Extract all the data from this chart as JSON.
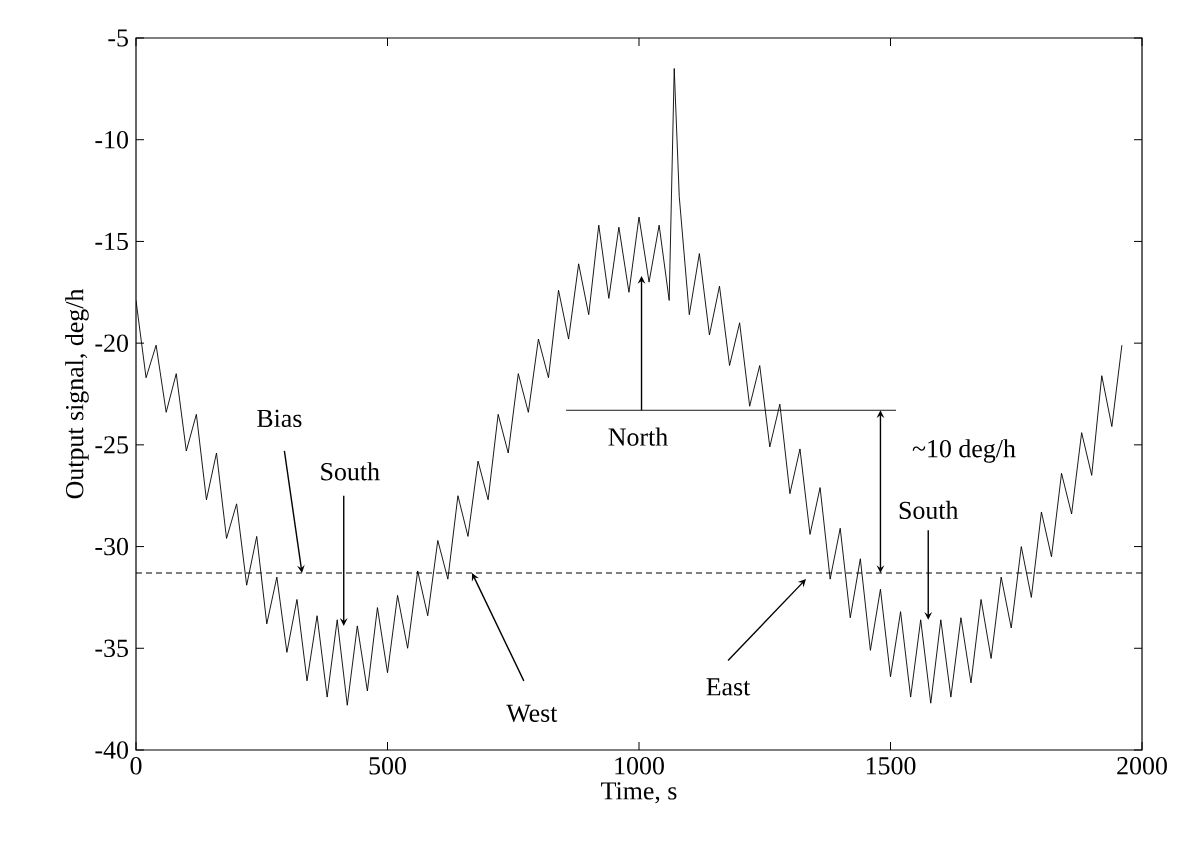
{
  "chart_data": {
    "type": "line",
    "xlabel": "Time, s",
    "ylabel": "Output signal, deg/h",
    "xlim": [
      0,
      2000
    ],
    "ylim": [
      -40,
      -5
    ],
    "xticks": [
      0,
      500,
      1000,
      1500,
      2000
    ],
    "yticks": [
      -40,
      -35,
      -30,
      -25,
      -20,
      -15,
      -10,
      -5
    ],
    "ref_lines": [
      {
        "axis": "y",
        "value": -31.3,
        "line_style": "dashed",
        "color": "#000000"
      }
    ],
    "annotations": [
      {
        "text": "Bias",
        "x": 330,
        "y": -31.3
      },
      {
        "text": "South",
        "x": 413,
        "y": -33.9
      },
      {
        "text": "West",
        "x": 668,
        "y": -31.3
      },
      {
        "text": "North",
        "x": 1005,
        "y": -16.7
      },
      {
        "text": "East",
        "x": 1332,
        "y": -31.6
      },
      {
        "text": "~10 deg/h",
        "x": 1480,
        "y": -23.3
      },
      {
        "text": "South",
        "x": 1575,
        "y": -33.6
      }
    ],
    "series": [
      {
        "color": "#000000",
        "x": [
          0,
          20,
          40,
          60,
          80,
          100,
          120,
          140,
          160,
          180,
          200,
          220,
          240,
          260,
          280,
          300,
          320,
          340,
          360,
          380,
          400,
          420,
          440,
          460,
          480,
          500,
          520,
          540,
          560,
          580,
          600,
          620,
          640,
          660,
          680,
          700,
          720,
          740,
          760,
          780,
          800,
          820,
          840,
          860,
          880,
          900,
          920,
          940,
          960,
          980,
          1000,
          1020,
          1040,
          1060,
          1070,
          1080,
          1100,
          1120,
          1140,
          1160,
          1180,
          1200,
          1220,
          1240,
          1260,
          1280,
          1300,
          1320,
          1340,
          1360,
          1380,
          1400,
          1420,
          1440,
          1460,
          1480,
          1500,
          1520,
          1540,
          1560,
          1580,
          1600,
          1620,
          1640,
          1660,
          1680,
          1700,
          1720,
          1740,
          1760,
          1780,
          1800,
          1820,
          1840,
          1860,
          1880,
          1900,
          1920,
          1940,
          1960
        ],
        "values": [
          -17.9,
          -21.7,
          -20.1,
          -23.4,
          -21.5,
          -25.3,
          -23.5,
          -27.7,
          -25.4,
          -29.6,
          -27.9,
          -31.9,
          -29.5,
          -33.8,
          -31.5,
          -35.2,
          -32.6,
          -36.6,
          -33.4,
          -37.4,
          -33.6,
          -37.8,
          -33.9,
          -37.1,
          -33.0,
          -36.2,
          -32.4,
          -35.0,
          -31.2,
          -33.4,
          -29.7,
          -31.6,
          -27.5,
          -29.5,
          -25.8,
          -27.7,
          -23.5,
          -25.4,
          -21.5,
          -23.4,
          -19.8,
          -21.7,
          -17.4,
          -19.8,
          -16.1,
          -18.6,
          -14.2,
          -17.8,
          -14.3,
          -17.5,
          -13.8,
          -17.0,
          -14.2,
          -17.9,
          -6.5,
          -12.8,
          -18.6,
          -15.6,
          -19.6,
          -17.2,
          -21.1,
          -19.0,
          -23.1,
          -21.1,
          -25.1,
          -23.0,
          -27.4,
          -25.2,
          -29.4,
          -27.1,
          -31.6,
          -29.1,
          -33.5,
          -30.6,
          -35.1,
          -32.1,
          -36.4,
          -33.2,
          -37.4,
          -33.6,
          -37.7,
          -33.6,
          -37.4,
          -33.5,
          -36.7,
          -32.6,
          -35.5,
          -31.5,
          -34.0,
          -30.0,
          -32.5,
          -28.3,
          -30.5,
          -26.4,
          -28.4,
          -24.4,
          -26.5,
          -21.6,
          -24.1,
          -20.1
        ]
      },
      {
        "color": "#000000",
        "x": [
          855,
          1511
        ],
        "values": [
          -23.3,
          -23.3
        ]
      }
    ]
  }
}
